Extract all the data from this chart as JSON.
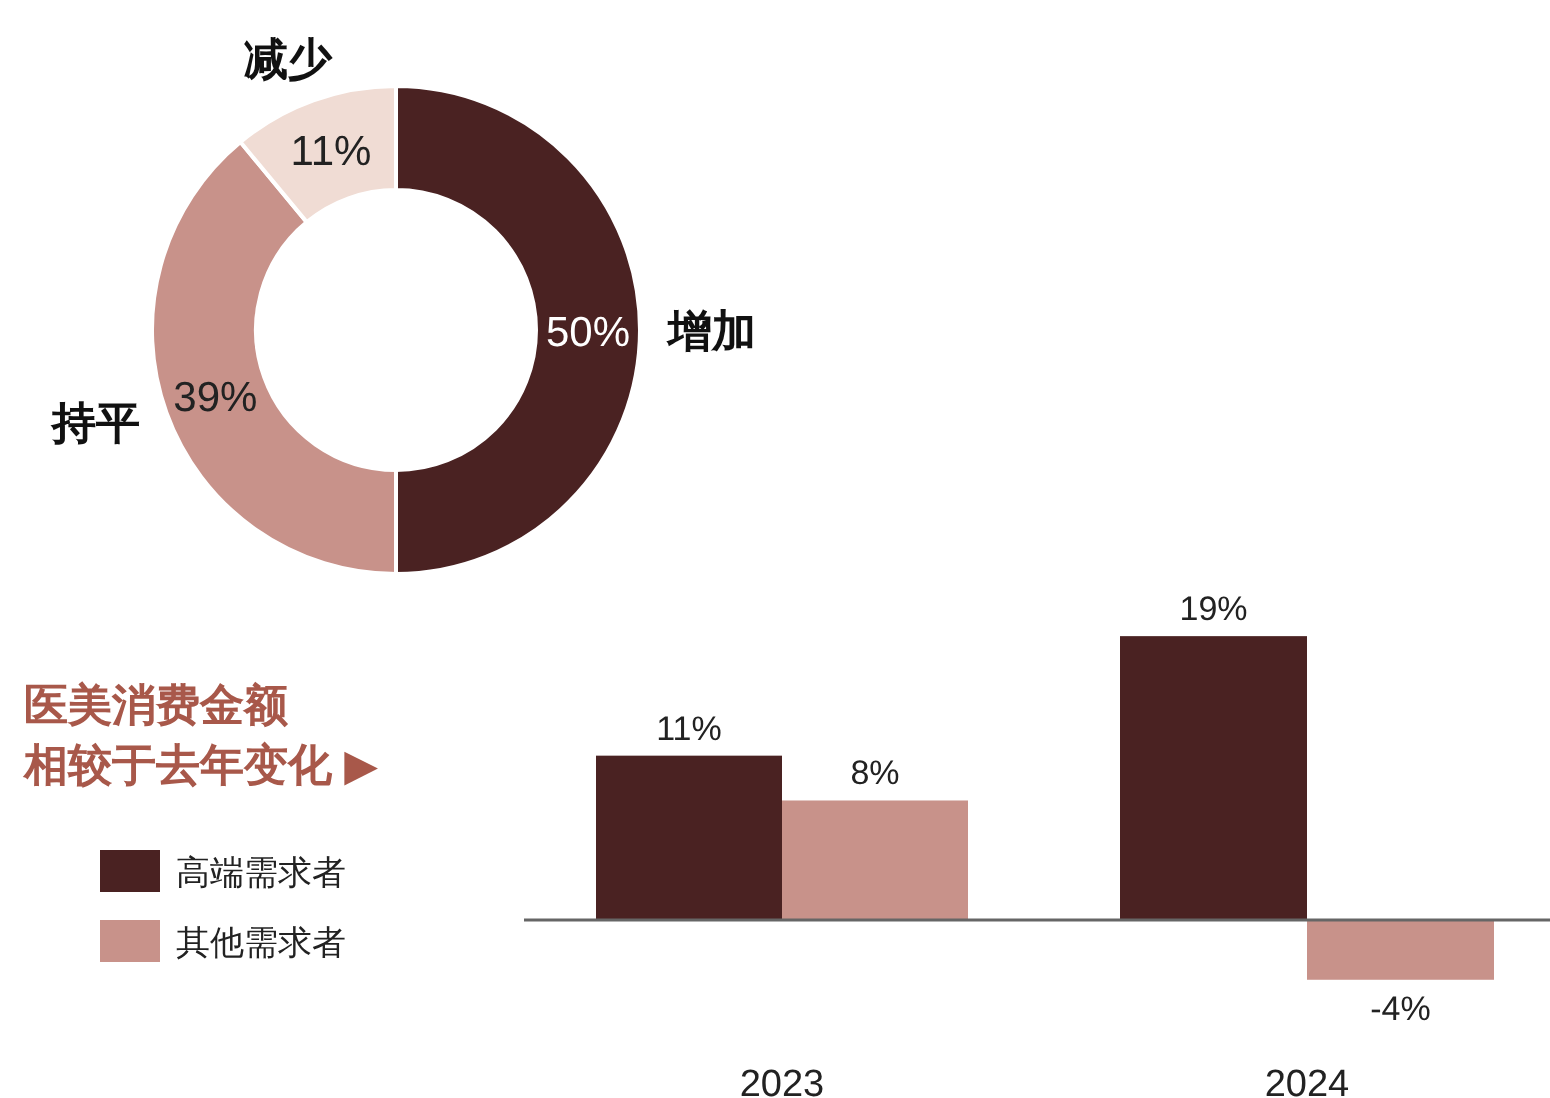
{
  "chart_data": [
    {
      "type": "donut",
      "categories": [
        "增加",
        "持平",
        "减少"
      ],
      "values": [
        50,
        39,
        11
      ],
      "colors": [
        "#4a2222",
        "#c8928a",
        "#f0dcd4"
      ],
      "value_labels": [
        "50%",
        "39%",
        "11%"
      ]
    },
    {
      "type": "bar",
      "title": "医美消费金额相较于去年变化 ▶",
      "categories": [
        "2023",
        "2024"
      ],
      "legend": "left",
      "series": [
        {
          "name": "高端需求者",
          "color": "#4a2222",
          "values": [
            11,
            19
          ],
          "value_labels": [
            "11%",
            "19%"
          ]
        },
        {
          "name": "其他需求者",
          "color": "#c8928a",
          "values": [
            8,
            -4
          ],
          "value_labels": [
            "8%",
            "-4%"
          ]
        }
      ]
    }
  ]
}
